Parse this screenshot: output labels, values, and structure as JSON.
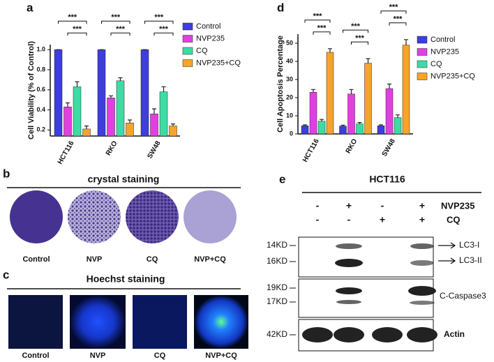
{
  "chart_data": [
    {
      "type": "bar",
      "letter": "a",
      "y_label": "Cell Viability (% of Control)",
      "categories": [
        "HCT116",
        "RKO",
        "SW48"
      ],
      "series": [
        {
          "name": "Control",
          "color": "#3d3de0",
          "values": [
            1,
            1,
            1
          ],
          "errors": [
            0,
            0,
            0
          ]
        },
        {
          "name": "NVP235",
          "color": "#e23fe2",
          "values": [
            0.43,
            0.52,
            0.36
          ],
          "errors": [
            0.04,
            0.02,
            0.05
          ]
        },
        {
          "name": "CQ",
          "color": "#3ddca4",
          "values": [
            0.63,
            0.69,
            0.58
          ],
          "errors": [
            0.05,
            0.03,
            0.05
          ]
        },
        {
          "name": "NVP235+CQ",
          "color": "#f6a42a",
          "values": [
            0.21,
            0.27,
            0.24
          ],
          "errors": [
            0.03,
            0.03,
            0.02
          ]
        }
      ],
      "significance": [
        [
          "***",
          "***"
        ],
        [
          "***",
          "***"
        ],
        [
          "***",
          "***"
        ]
      ],
      "ylim": [
        0.14,
        1.05
      ],
      "yticks": [
        0.2,
        0.4,
        0.6,
        0.8,
        {
          "value": 1,
          "label": "1.0"
        }
      ]
    },
    {
      "type": "bar",
      "letter": "d",
      "y_label": "Cell Apoptosis Percentage",
      "categories": [
        "HCT116",
        "RKO",
        "SW48"
      ],
      "series": [
        {
          "name": "Control",
          "color": "#3d3de0",
          "values": [
            4.5,
            4.3,
            4.5
          ],
          "errors": [
            0.5,
            0.5,
            0.5
          ]
        },
        {
          "name": "NVP235",
          "color": "#e23fe2",
          "values": [
            23,
            22,
            25
          ],
          "errors": [
            1.5,
            2.5,
            2.5
          ]
        },
        {
          "name": "CQ",
          "color": "#3ddca4",
          "values": [
            7,
            5.5,
            9
          ],
          "errors": [
            1,
            0.8,
            1.5
          ]
        },
        {
          "name": "NVP235+CQ",
          "color": "#f6a42a",
          "values": [
            45,
            39,
            49
          ],
          "errors": [
            2,
            2.5,
            3
          ]
        }
      ],
      "significance": [
        [
          "***",
          "***"
        ],
        [
          "***",
          "***"
        ],
        [
          "***",
          "***"
        ]
      ],
      "ylim": [
        0,
        55
      ],
      "yticks": [
        0,
        10,
        20,
        30,
        40,
        50
      ]
    }
  ],
  "panels": {
    "b": {
      "letter": "b",
      "title": "crystal staining",
      "labels": [
        "Control",
        "NVP",
        "CQ",
        "NVP+CQ"
      ]
    },
    "c": {
      "letter": "c",
      "title": "Hoechst staining",
      "labels": [
        "Control",
        "NVP",
        "CQ",
        "NVP+CQ"
      ]
    },
    "e": {
      "letter": "e",
      "title": "HCT116",
      "treatments": [
        {
          "name": "NVP235",
          "marks": [
            "-",
            "+",
            "-",
            "+"
          ]
        },
        {
          "name": "CQ",
          "marks": [
            "-",
            "-",
            "+",
            "+"
          ]
        }
      ],
      "blots": [
        {
          "markers": [
            "14KD",
            "16KD"
          ],
          "labels": [
            "LC3-I",
            "LC3-II"
          ]
        },
        {
          "markers": [
            "19KD",
            "17KD"
          ],
          "labels": [
            "C-Caspase3"
          ]
        },
        {
          "markers": [
            "42KD"
          ],
          "labels": [
            "Actin"
          ]
        }
      ]
    }
  }
}
